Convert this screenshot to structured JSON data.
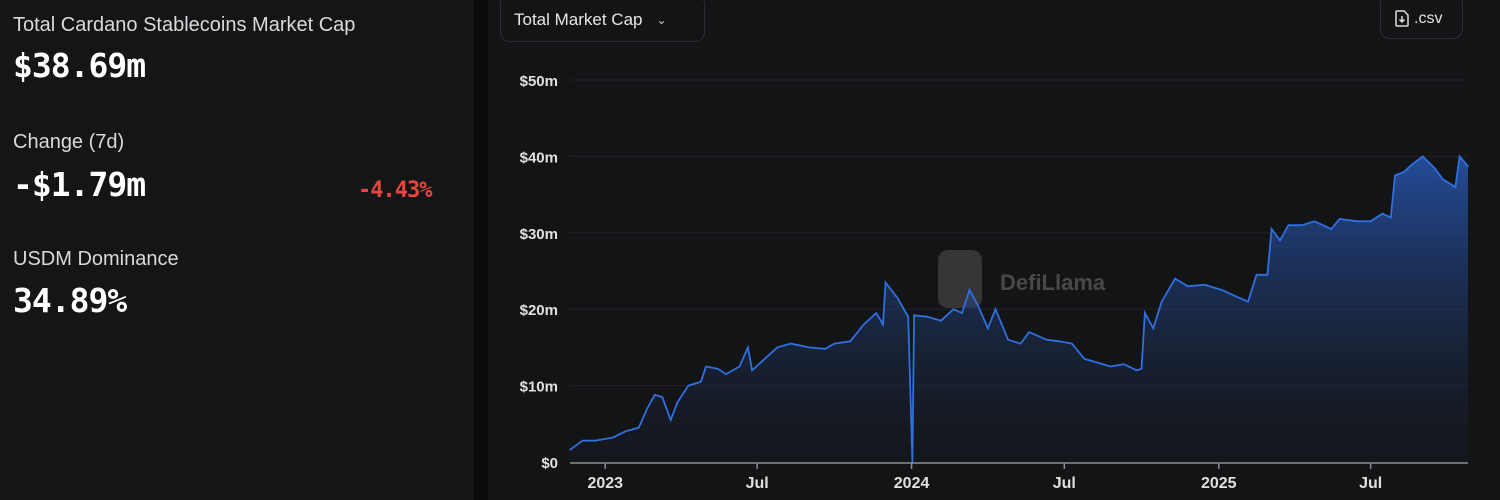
{
  "stats": {
    "total_label": "Total Cardano Stablecoins Market Cap",
    "total_value": "$38.69m",
    "change_label": "Change (7d)",
    "change_value": "-$1.79m",
    "change_percent": "-4.43%",
    "dominance_label": "USDM Dominance",
    "dominance_value": "34.89%"
  },
  "toolbar": {
    "metric_select": "Total Market Cap",
    "csv_label": ".csv"
  },
  "watermark": "DefiLlama",
  "colors": {
    "line": "#2f6fe0",
    "negative": "#e8453c"
  },
  "chart_data": {
    "type": "area",
    "title": "",
    "xlabel": "",
    "ylabel": "",
    "ylim": [
      0,
      50
    ],
    "yticks": [
      "$0",
      "$10m",
      "$20m",
      "$30m",
      "$40m",
      "$50m"
    ],
    "ytick_values": [
      0,
      10,
      20,
      30,
      40,
      50
    ],
    "xticks": [
      {
        "label": "2023",
        "date": "2023-01-01"
      },
      {
        "label": "Jul",
        "date": "2023-07-01"
      },
      {
        "label": "2024",
        "date": "2024-01-01"
      },
      {
        "label": "Jul",
        "date": "2024-07-01"
      },
      {
        "label": "2025",
        "date": "2025-01-01"
      },
      {
        "label": "Jul",
        "date": "2025-07-01"
      }
    ],
    "xlim": [
      "2022-11-20",
      "2025-10-25"
    ],
    "grid": true,
    "unit": "USD millions",
    "points": [
      [
        "2022-11-20",
        1.6
      ],
      [
        "2022-12-05",
        2.8
      ],
      [
        "2022-12-20",
        2.8
      ],
      [
        "2023-01-10",
        3.2
      ],
      [
        "2023-01-25",
        4.0
      ],
      [
        "2023-02-10",
        4.5
      ],
      [
        "2023-02-20",
        7.0
      ],
      [
        "2023-03-01",
        8.8
      ],
      [
        "2023-03-10",
        8.5
      ],
      [
        "2023-03-20",
        5.5
      ],
      [
        "2023-03-28",
        7.8
      ],
      [
        "2023-04-10",
        10.0
      ],
      [
        "2023-04-25",
        10.5
      ],
      [
        "2023-05-01",
        12.5
      ],
      [
        "2023-05-15",
        12.2
      ],
      [
        "2023-05-25",
        11.5
      ],
      [
        "2023-06-10",
        12.5
      ],
      [
        "2023-06-20",
        15.0
      ],
      [
        "2023-06-25",
        12.0
      ],
      [
        "2023-07-10",
        13.5
      ],
      [
        "2023-07-25",
        15.0
      ],
      [
        "2023-08-10",
        15.5
      ],
      [
        "2023-09-01",
        15.0
      ],
      [
        "2023-09-20",
        14.8
      ],
      [
        "2023-10-01",
        15.5
      ],
      [
        "2023-10-20",
        15.8
      ],
      [
        "2023-11-05",
        18.0
      ],
      [
        "2023-11-20",
        19.5
      ],
      [
        "2023-11-28",
        18.0
      ],
      [
        "2023-12-01",
        23.5
      ],
      [
        "2023-12-15",
        21.5
      ],
      [
        "2023-12-28",
        19.0
      ],
      [
        "2024-01-02",
        0
      ],
      [
        "2024-01-04",
        19.2
      ],
      [
        "2024-01-20",
        19.0
      ],
      [
        "2024-02-05",
        18.5
      ],
      [
        "2024-02-20",
        20.0
      ],
      [
        "2024-03-01",
        19.5
      ],
      [
        "2024-03-10",
        22.5
      ],
      [
        "2024-03-20",
        20.5
      ],
      [
        "2024-04-01",
        17.5
      ],
      [
        "2024-04-10",
        20.0
      ],
      [
        "2024-04-25",
        16.0
      ],
      [
        "2024-05-10",
        15.5
      ],
      [
        "2024-05-20",
        17.0
      ],
      [
        "2024-06-10",
        16.0
      ],
      [
        "2024-06-25",
        15.8
      ],
      [
        "2024-07-10",
        15.5
      ],
      [
        "2024-07-25",
        13.5
      ],
      [
        "2024-08-10",
        13.0
      ],
      [
        "2024-08-25",
        12.5
      ],
      [
        "2024-09-10",
        12.8
      ],
      [
        "2024-09-25",
        12.0
      ],
      [
        "2024-10-01",
        12.2
      ],
      [
        "2024-10-05",
        19.5
      ],
      [
        "2024-10-15",
        17.5
      ],
      [
        "2024-10-25",
        21.0
      ],
      [
        "2024-11-10",
        24.0
      ],
      [
        "2024-11-25",
        23.0
      ],
      [
        "2024-12-15",
        23.2
      ],
      [
        "2025-01-05",
        22.5
      ],
      [
        "2025-01-25",
        21.5
      ],
      [
        "2025-02-05",
        21.0
      ],
      [
        "2025-02-15",
        24.5
      ],
      [
        "2025-02-28",
        24.5
      ],
      [
        "2025-03-05",
        30.5
      ],
      [
        "2025-03-15",
        29.0
      ],
      [
        "2025-03-25",
        31.0
      ],
      [
        "2025-04-10",
        31.0
      ],
      [
        "2025-04-25",
        31.5
      ],
      [
        "2025-05-15",
        30.5
      ],
      [
        "2025-05-25",
        31.8
      ],
      [
        "2025-06-15",
        31.5
      ],
      [
        "2025-07-01",
        31.5
      ],
      [
        "2025-07-15",
        32.5
      ],
      [
        "2025-07-25",
        32.0
      ],
      [
        "2025-07-30",
        37.5
      ],
      [
        "2025-08-10",
        38.0
      ],
      [
        "2025-08-20",
        39.0
      ],
      [
        "2025-09-01",
        40.0
      ],
      [
        "2025-09-15",
        38.5
      ],
      [
        "2025-09-25",
        37.0
      ],
      [
        "2025-10-10",
        36.0
      ],
      [
        "2025-10-15",
        40.0
      ],
      [
        "2025-10-25",
        38.7
      ]
    ]
  }
}
